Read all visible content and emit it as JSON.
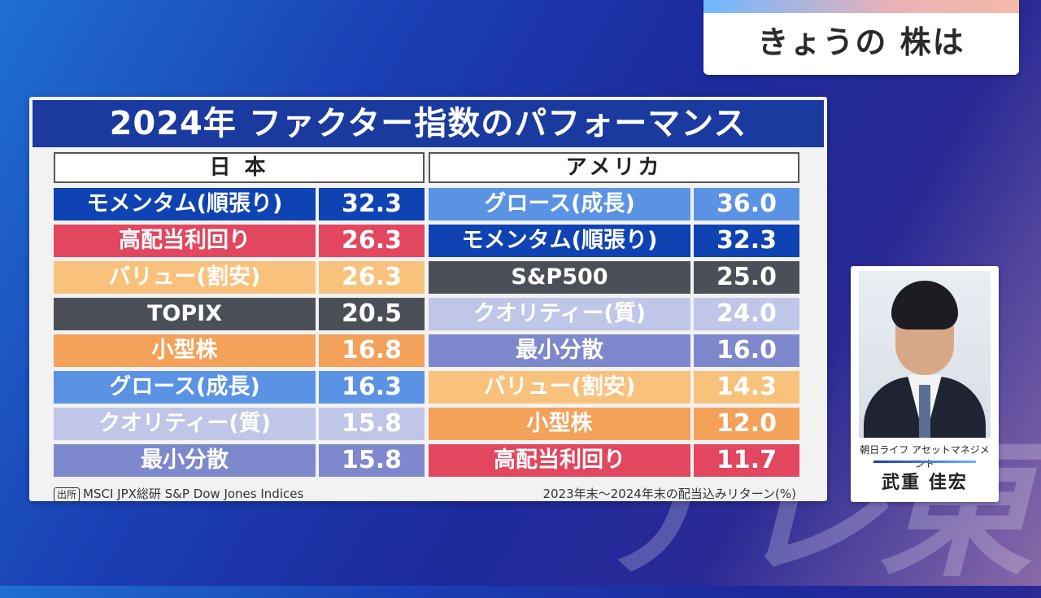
{
  "corner_title": "きょうの 株は",
  "panel_title": "2024年 ファクター指数のパフォーマンス",
  "japan": {
    "header": "日 本",
    "rows": [
      {
        "name": "モメンタム(順張り)",
        "value": "32.3",
        "color": "#0f43b3"
      },
      {
        "name": "高配当利回り",
        "value": "26.3",
        "color": "#e2475f"
      },
      {
        "name": "バリュー(割安)",
        "value": "26.3",
        "color": "#f9c27c"
      },
      {
        "name": "TOPIX",
        "value": "20.5",
        "color": "#4b4f58"
      },
      {
        "name": "小型株",
        "value": "16.8",
        "color": "#f4a15a"
      },
      {
        "name": "グロース(成長)",
        "value": "16.3",
        "color": "#5a93e3"
      },
      {
        "name": "クオリティー(質)",
        "value": "15.8",
        "color": "#c0c6e8"
      },
      {
        "name": "最小分散",
        "value": "15.8",
        "color": "#7e88cc"
      }
    ]
  },
  "usa": {
    "header": "アメリカ",
    "rows": [
      {
        "name": "グロース(成長)",
        "value": "36.0",
        "color": "#5a93e3"
      },
      {
        "name": "モメンタム(順張り)",
        "value": "32.3",
        "color": "#0f43b3"
      },
      {
        "name": "S&P500",
        "value": "25.0",
        "color": "#4b4f58"
      },
      {
        "name": "クオリティー(質)",
        "value": "24.0",
        "color": "#c0c6e8"
      },
      {
        "name": "最小分散",
        "value": "16.0",
        "color": "#7e88cc"
      },
      {
        "name": "バリュー(割安)",
        "value": "14.3",
        "color": "#f9c27c"
      },
      {
        "name": "小型株",
        "value": "12.0",
        "color": "#f4a15a"
      },
      {
        "name": "高配当利回り",
        "value": "11.7",
        "color": "#e2475f"
      }
    ]
  },
  "source_label": "出所",
  "source_text": "MSCI JPX総研 S&P Dow Jones Indices",
  "note": "2023年末〜2024年末の配当込みリターン(%)",
  "speaker": {
    "company": "朝日ライフ アセットマネジメント",
    "name": "武重 佳宏"
  },
  "watermark": "テレ東"
}
